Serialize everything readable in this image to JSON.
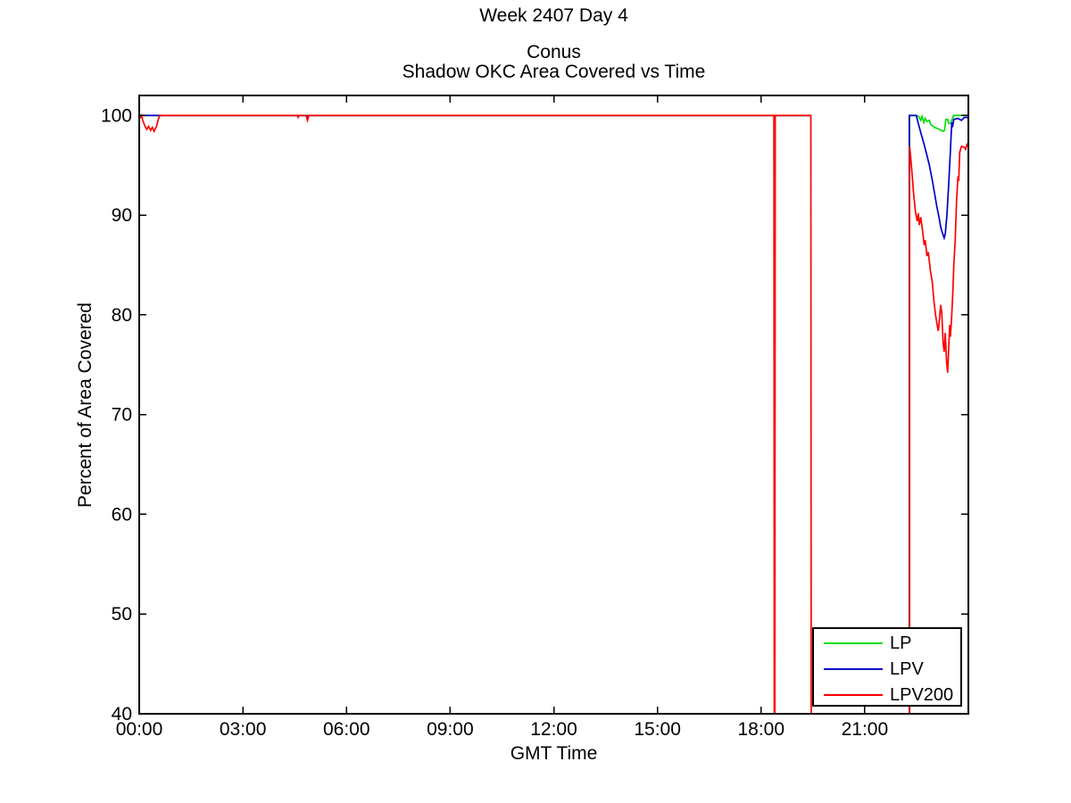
{
  "titles": {
    "suptitle": "Week 2407 Day 4",
    "title_line1": "Conus",
    "title_line2": "Shadow OKC Area Covered vs Time"
  },
  "chart_data": {
    "type": "line",
    "title": "Conus — Shadow OKC Area Covered vs Time",
    "suptitle": "Week 2407 Day 4",
    "xlabel": "GMT Time",
    "ylabel": "Percent of Area Covered",
    "xlim_hours": [
      0,
      24
    ],
    "ylim": [
      40,
      102
    ],
    "grid": false,
    "x_ticks": [
      {
        "hour": 0,
        "label": "00:00"
      },
      {
        "hour": 3,
        "label": "03:00"
      },
      {
        "hour": 6,
        "label": "06:00"
      },
      {
        "hour": 9,
        "label": "09:00"
      },
      {
        "hour": 12,
        "label": "12:00"
      },
      {
        "hour": 15,
        "label": "15:00"
      },
      {
        "hour": 18,
        "label": "18:00"
      },
      {
        "hour": 21,
        "label": "21:00"
      }
    ],
    "y_ticks": [
      40,
      50,
      60,
      70,
      80,
      90,
      100
    ],
    "legend": {
      "position": "bottom-right",
      "entries": [
        "LP",
        "LPV",
        "LPV200"
      ]
    },
    "series": [
      {
        "name": "LP",
        "color": "#00dd00",
        "segments": [
          [
            [
              0,
              100
            ],
            [
              19.44,
              100
            ]
          ],
          [
            [
              22.3,
              40
            ],
            [
              22.3,
              100
            ],
            [
              22.49,
              100
            ],
            [
              22.56,
              99.9
            ],
            [
              22.62,
              99.5
            ],
            [
              22.66,
              99.9
            ],
            [
              22.71,
              99.3
            ],
            [
              22.75,
              99.7
            ],
            [
              22.8,
              99.4
            ],
            [
              22.87,
              99.5
            ],
            [
              22.91,
              99.1
            ],
            [
              23.02,
              98.8
            ],
            [
              23.1,
              98.7
            ],
            [
              23.22,
              98.5
            ],
            [
              23.27,
              98.4
            ],
            [
              23.31,
              98.5
            ],
            [
              23.35,
              99.6
            ],
            [
              23.4,
              99.6
            ],
            [
              23.43,
              99.2
            ],
            [
              23.5,
              99.2
            ],
            [
              23.53,
              99.6
            ],
            [
              23.57,
              100
            ],
            [
              23.98,
              100
            ]
          ]
        ]
      },
      {
        "name": "LPV",
        "color": "#0000cc",
        "segments": [
          [
            [
              0,
              100
            ],
            [
              4.83,
              100
            ],
            [
              4.86,
              99.7
            ],
            [
              4.89,
              100
            ],
            [
              18.38,
              100
            ],
            [
              18.39,
              99.1
            ],
            [
              18.41,
              100
            ],
            [
              19.44,
              100
            ]
          ],
          [
            [
              22.29,
              40
            ],
            [
              22.29,
              100
            ],
            [
              22.49,
              100
            ],
            [
              22.55,
              99.2
            ],
            [
              22.62,
              98.3
            ],
            [
              22.71,
              97.2
            ],
            [
              22.8,
              96.0
            ],
            [
              22.87,
              95.0
            ],
            [
              22.95,
              93.6
            ],
            [
              23.02,
              92.2
            ],
            [
              23.08,
              91.0
            ],
            [
              23.15,
              89.8
            ],
            [
              23.2,
              88.8
            ],
            [
              23.25,
              88.2
            ],
            [
              23.3,
              87.7
            ],
            [
              23.33,
              88.1
            ],
            [
              23.38,
              90.0
            ],
            [
              23.43,
              93.0
            ],
            [
              23.48,
              96.5
            ],
            [
              23.52,
              99.3
            ],
            [
              23.55,
              99.0
            ],
            [
              23.58,
              99.6
            ],
            [
              23.7,
              99.7
            ],
            [
              23.8,
              99.5
            ],
            [
              23.88,
              99.8
            ],
            [
              23.98,
              99.8
            ]
          ]
        ]
      },
      {
        "name": "LPV200",
        "color": "#ff0000",
        "segments": [
          [
            [
              0,
              100
            ],
            [
              0.04,
              99.8
            ],
            [
              0.07,
              100
            ],
            [
              0.1,
              99.5
            ],
            [
              0.17,
              98.9
            ],
            [
              0.22,
              98.6
            ],
            [
              0.27,
              98.9
            ],
            [
              0.33,
              98.5
            ],
            [
              0.38,
              98.8
            ],
            [
              0.43,
              98.4
            ],
            [
              0.5,
              98.9
            ],
            [
              0.55,
              99.6
            ],
            [
              0.6,
              100
            ],
            [
              4.57,
              100
            ],
            [
              4.6,
              99.8
            ],
            [
              4.63,
              100
            ],
            [
              4.83,
              100
            ],
            [
              4.87,
              99.5
            ],
            [
              4.91,
              100
            ],
            [
              18.37,
              100
            ],
            [
              18.38,
              40
            ],
            [
              18.4,
              40
            ],
            [
              18.41,
              100
            ],
            [
              19.44,
              100
            ],
            [
              19.45,
              40
            ]
          ],
          [
            [
              22.3,
              40
            ],
            [
              22.3,
              96.9
            ],
            [
              22.33,
              95.8
            ],
            [
              22.36,
              94.6
            ],
            [
              22.42,
              92.0
            ],
            [
              22.47,
              90.3
            ],
            [
              22.52,
              89.4
            ],
            [
              22.55,
              90.2
            ],
            [
              22.58,
              89.0
            ],
            [
              22.62,
              89.8
            ],
            [
              22.67,
              88.6
            ],
            [
              22.72,
              87.0
            ],
            [
              22.75,
              87.5
            ],
            [
              22.8,
              85.9
            ],
            [
              22.84,
              86.3
            ],
            [
              22.9,
              84.5
            ],
            [
              22.96,
              83.2
            ],
            [
              23.0,
              81.5
            ],
            [
              23.05,
              80.0
            ],
            [
              23.1,
              78.9
            ],
            [
              23.13,
              78.4
            ],
            [
              23.17,
              79.8
            ],
            [
              23.2,
              81.0
            ],
            [
              23.23,
              80.2
            ],
            [
              23.27,
              77.2
            ],
            [
              23.3,
              76.3
            ],
            [
              23.33,
              78.2
            ],
            [
              23.37,
              75.3
            ],
            [
              23.4,
              74.2
            ],
            [
              23.43,
              76.5
            ],
            [
              23.46,
              79.0
            ],
            [
              23.48,
              77.8
            ],
            [
              23.52,
              80.0
            ],
            [
              23.55,
              82.3
            ],
            [
              23.58,
              85.0
            ],
            [
              23.62,
              87.6
            ],
            [
              23.66,
              91.5
            ],
            [
              23.7,
              93.9
            ],
            [
              23.72,
              93.4
            ],
            [
              23.75,
              96.3
            ],
            [
              23.8,
              96.9
            ],
            [
              23.88,
              96.8
            ],
            [
              23.92,
              96.6
            ],
            [
              23.97,
              97.2
            ]
          ]
        ]
      }
    ]
  }
}
